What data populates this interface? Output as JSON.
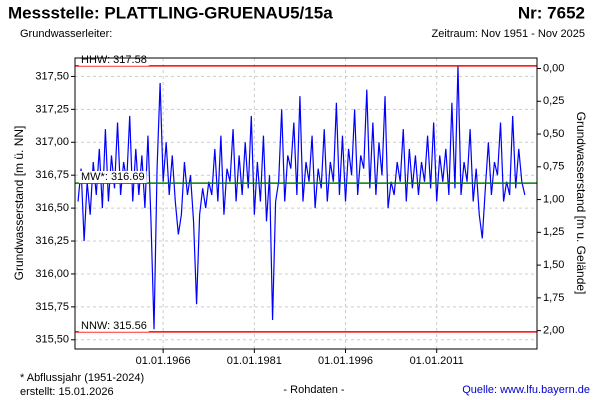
{
  "chart_data": {
    "type": "line",
    "title": "Messstelle: PLATTLING-GRUENAU5/15a",
    "number": "Nr: 7652",
    "subtitle": "Grundwasserleiter:",
    "period": "Zeitraum: Nov 1951 - Nov 2025",
    "y_label": "Grundwasserstand [m ü. NN]",
    "y2_label": "Grundwasserstand [m u. Gelände]",
    "footnote": "* Abflussjahr (1951-2024)",
    "created": "erstellt:  15.01.2026",
    "data_note": "- Rohdaten -",
    "source": "Quelle: www.lfu.bayern.de",
    "xlim": [
      1951.5,
      2027.5
    ],
    "xticks": [
      {
        "value": 1966,
        "label": "01.01.1966"
      },
      {
        "value": 1981,
        "label": "01.01.1981"
      },
      {
        "value": 1996,
        "label": "01.01.1996"
      },
      {
        "value": 2011,
        "label": "01.01.2011"
      }
    ],
    "ylim": [
      315.43,
      317.64
    ],
    "yticks": [
      {
        "value": 315.5,
        "label": "315,50"
      },
      {
        "value": 315.75,
        "label": "315,75"
      },
      {
        "value": 316,
        "label": "316,00"
      },
      {
        "value": 316.25,
        "label": "316,25"
      },
      {
        "value": 316.5,
        "label": "316,50"
      },
      {
        "value": 316.75,
        "label": "316,75"
      },
      {
        "value": 317,
        "label": "317,00"
      },
      {
        "value": 317.25,
        "label": "317,25"
      },
      {
        "value": 317.5,
        "label": "317,50"
      }
    ],
    "y2lim": [
      2.14,
      -0.08
    ],
    "y2ticks": [
      {
        "value": 0,
        "label": "0,00"
      },
      {
        "value": 0.25,
        "label": "0,25"
      },
      {
        "value": 0.5,
        "label": "0,50"
      },
      {
        "value": 0.75,
        "label": "0,75"
      },
      {
        "value": 1,
        "label": "1,00"
      },
      {
        "value": 1.25,
        "label": "1,25"
      },
      {
        "value": 1.5,
        "label": "1,50"
      },
      {
        "value": 1.75,
        "label": "1,75"
      },
      {
        "value": 2,
        "label": "2,00"
      }
    ],
    "grid": true,
    "reference_lines": [
      {
        "label": "HHW: 317.58",
        "value": 317.58,
        "color": "#ff0000"
      },
      {
        "label": "MW*: 316.69",
        "value": 316.69,
        "color": "#008000"
      },
      {
        "label": "NNW: 315.56",
        "value": 315.56,
        "color": "#ff0000"
      }
    ],
    "series": [
      {
        "color": "#0000ff",
        "x": [
          1952,
          1952.5,
          1953,
          1953.5,
          1954,
          1954.5,
          1955,
          1955.5,
          1956,
          1956.5,
          1957,
          1957.5,
          1958,
          1958.5,
          1959,
          1959.5,
          1960,
          1960.5,
          1961,
          1961.5,
          1962,
          1962.5,
          1963,
          1963.5,
          1964,
          1964.5,
          1965,
          1965.5,
          1966,
          1966.5,
          1967,
          1967.5,
          1968,
          1968.5,
          1969,
          1969.5,
          1970,
          1970.5,
          1971,
          1971.5,
          1972,
          1972.5,
          1973,
          1973.5,
          1974,
          1974.5,
          1975,
          1975.5,
          1976,
          1976.5,
          1977,
          1977.5,
          1978,
          1978.5,
          1979,
          1979.5,
          1980,
          1980.5,
          1981,
          1981.5,
          1982,
          1982.5,
          1983,
          1983.5,
          1984,
          1984.5,
          1985,
          1985.5,
          1986,
          1986.5,
          1987,
          1987.5,
          1988,
          1988.5,
          1989,
          1989.5,
          1990,
          1990.5,
          1991,
          1991.5,
          1992,
          1992.5,
          1993,
          1993.5,
          1994,
          1994.5,
          1995,
          1995.5,
          1996,
          1996.5,
          1997,
          1997.5,
          1998,
          1998.5,
          1999,
          1999.5,
          2000,
          2000.5,
          2001,
          2001.5,
          2002,
          2002.5,
          2003,
          2003.5,
          2004,
          2004.5,
          2005,
          2005.5,
          2006,
          2006.5,
          2007,
          2007.5,
          2008,
          2008.5,
          2009,
          2009.5,
          2010,
          2010.5,
          2011,
          2011.5,
          2012,
          2012.5,
          2013,
          2013.5,
          2014,
          2014.5,
          2015,
          2015.5,
          2016,
          2016.5,
          2017,
          2017.5,
          2018,
          2018.5,
          2019,
          2019.5,
          2020,
          2020.5,
          2021,
          2021.5,
          2022,
          2022.5,
          2023,
          2023.5,
          2024,
          2024.5,
          2025,
          2025.5
        ],
        "values": [
          316.55,
          316.8,
          316.25,
          316.7,
          316.45,
          316.85,
          316.6,
          316.95,
          316.5,
          317.1,
          316.55,
          316.9,
          316.65,
          317.15,
          316.6,
          316.85,
          316.7,
          317.2,
          316.55,
          316.95,
          316.6,
          316.9,
          316.5,
          317.05,
          316.4,
          315.58,
          316.8,
          317.45,
          316.7,
          317.0,
          316.6,
          316.9,
          316.55,
          316.3,
          316.45,
          316.85,
          316.6,
          316.75,
          316.4,
          315.77,
          316.45,
          316.65,
          316.5,
          316.7,
          316.6,
          316.95,
          316.55,
          317.05,
          316.45,
          316.8,
          316.7,
          317.1,
          316.55,
          316.9,
          316.6,
          317.0,
          316.65,
          317.2,
          316.45,
          316.85,
          316.55,
          317.05,
          316.4,
          316.75,
          315.65,
          316.55,
          316.7,
          317.25,
          316.55,
          316.9,
          316.8,
          317.15,
          316.6,
          317.35,
          316.55,
          316.85,
          316.7,
          317.05,
          316.5,
          316.8,
          316.65,
          317.1,
          316.55,
          316.85,
          316.7,
          317.3,
          316.6,
          317.05,
          316.55,
          316.95,
          316.75,
          317.25,
          316.6,
          316.9,
          316.8,
          317.4,
          316.65,
          317.15,
          316.6,
          317.0,
          316.75,
          317.35,
          316.5,
          316.7,
          316.6,
          316.85,
          316.7,
          317.1,
          316.55,
          316.95,
          316.65,
          316.9,
          316.6,
          316.85,
          316.7,
          317.05,
          316.65,
          317.15,
          316.55,
          316.9,
          316.7,
          316.95,
          316.6,
          317.3,
          316.65,
          317.58,
          316.6,
          316.85,
          316.7,
          317.1,
          316.55,
          316.8,
          316.45,
          316.27,
          316.65,
          317.0,
          316.6,
          316.85,
          316.75,
          317.15,
          316.55,
          316.7,
          316.6,
          317.2,
          316.65,
          316.95,
          316.7,
          316.6
        ]
      }
    ]
  }
}
